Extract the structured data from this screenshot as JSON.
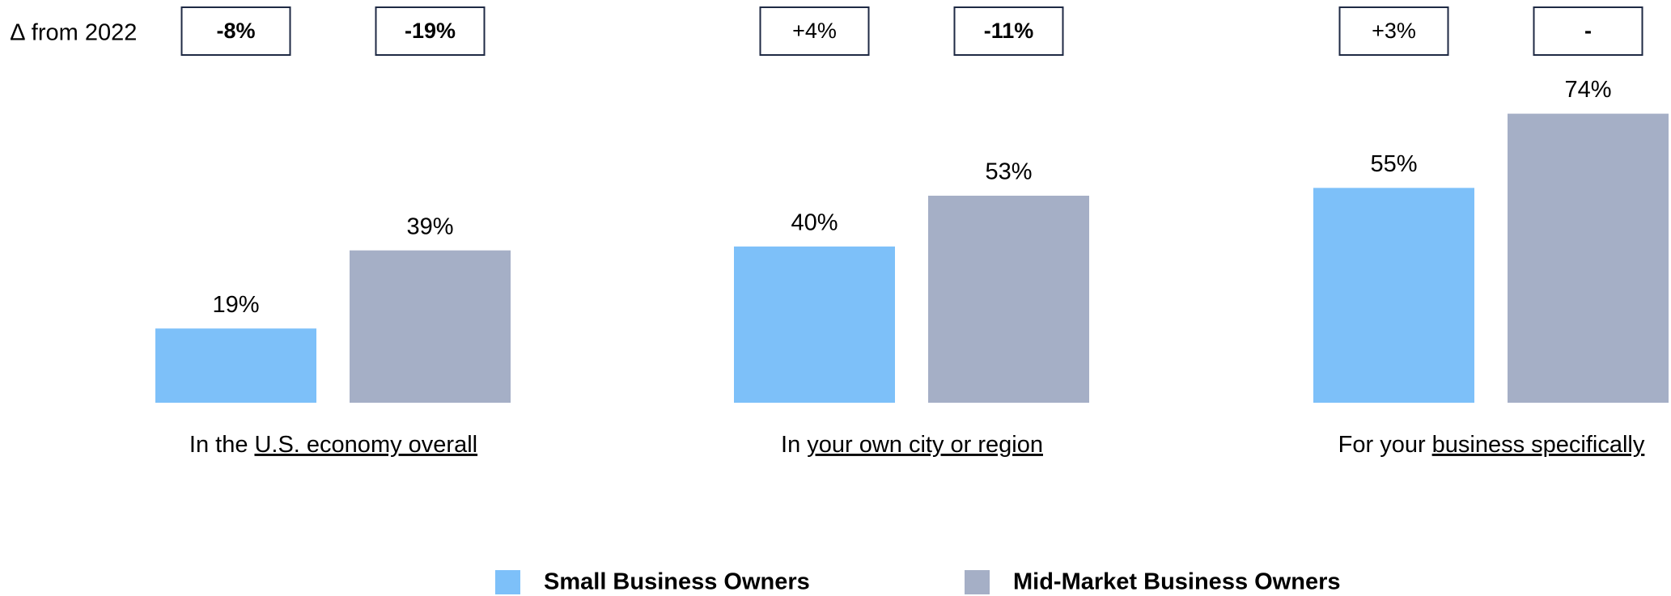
{
  "chart_data": {
    "type": "bar",
    "categories": [
      [
        "In the",
        "U.S. economy overall"
      ],
      [
        "In",
        "your own city or region"
      ],
      [
        "For your",
        "business specifically"
      ]
    ],
    "series": [
      {
        "name": "Small Business Owners",
        "color": "#7dc0f9",
        "values": [
          19,
          40,
          55
        ],
        "value_labels": [
          "19%",
          "40%",
          "55%"
        ],
        "deltas": [
          "-8%",
          "+4%",
          "+3%"
        ]
      },
      {
        "name": "Mid-Market Business Owners",
        "color": "#a5afc6",
        "values": [
          39,
          53,
          74
        ],
        "value_labels": [
          "39%",
          "53%",
          "74%"
        ],
        "deltas": [
          "-19%",
          "-11%",
          "-"
        ]
      }
    ],
    "delta_label": "∆ from 2022",
    "ylim": [
      0,
      100
    ]
  }
}
